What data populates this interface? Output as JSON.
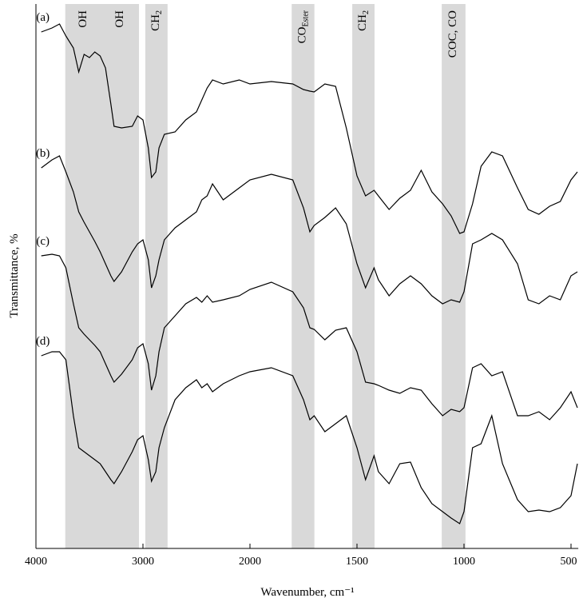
{
  "chart_data": {
    "type": "line",
    "xlabel": "Wavenumber, cm⁻¹",
    "ylabel": "Transmittance, %",
    "xlim": [
      4000,
      466
    ],
    "xticks": [
      4000,
      3000,
      2000,
      1500,
      1000,
      500
    ],
    "ylim": [
      0,
      68.1
    ],
    "color": "#000000",
    "band_color": "#d9d9d9",
    "bands": [
      {
        "from": 3726,
        "to": 3037,
        "labels": [
          {
            "text": "OH"
          },
          {
            "text": "OH"
          }
        ]
      },
      {
        "from": 2978,
        "to": 2770,
        "labels": [
          {
            "text": "CH",
            "sub": "2"
          }
        ]
      },
      {
        "from": 1805,
        "to": 1699,
        "labels": [
          {
            "text": "CO",
            "sub": "Ester"
          }
        ]
      },
      {
        "from": 1522,
        "to": 1418,
        "labels": [
          {
            "text": "CH",
            "sub": "2"
          }
        ]
      },
      {
        "from": 1104,
        "to": 993,
        "labels": [
          {
            "text": "COC, CO"
          }
        ]
      }
    ],
    "x": [
      3950,
      3850,
      3780,
      3720,
      3650,
      3600,
      3550,
      3500,
      3450,
      3400,
      3350,
      3300,
      3270,
      3200,
      3100,
      3050,
      3000,
      2950,
      2920,
      2880,
      2850,
      2800,
      2700,
      2600,
      2500,
      2450,
      2400,
      2350,
      2250,
      2100,
      2000,
      1900,
      1800,
      1750,
      1720,
      1700,
      1650,
      1600,
      1550,
      1500,
      1460,
      1420,
      1400,
      1350,
      1300,
      1250,
      1200,
      1150,
      1100,
      1060,
      1020,
      1000,
      960,
      920,
      870,
      820,
      750,
      700,
      650,
      600,
      550,
      500,
      470
    ],
    "series": [
      {
        "name": "(a)",
        "values": [
          64.6,
          65.1,
          65.6,
          64.1,
          62.6,
          59.6,
          61.8,
          61.4,
          62.1,
          61.6,
          60.1,
          55.6,
          52.8,
          52.6,
          52.8,
          54.1,
          53.6,
          50.1,
          46.4,
          47.1,
          50.1,
          51.8,
          52.1,
          53.6,
          54.6,
          56.1,
          57.6,
          58.6,
          58.1,
          58.6,
          58.1,
          58.4,
          58.1,
          57.4,
          57.2,
          57.1,
          58.1,
          57.8,
          52.6,
          46.6,
          44.1,
          44.8,
          44.1,
          42.4,
          43.8,
          44.8,
          47.3,
          44.6,
          43.1,
          41.6,
          39.4,
          39.6,
          43.1,
          47.8,
          49.6,
          49.1,
          45.1,
          42.4,
          41.8,
          42.8,
          43.4,
          46.1,
          47.1
        ]
      },
      {
        "name": "(b)",
        "values": [
          47.6,
          48.6,
          49.1,
          47.1,
          44.6,
          42.1,
          40.8,
          39.6,
          38.4,
          37.1,
          35.6,
          34.1,
          33.4,
          34.6,
          37.1,
          38.1,
          38.6,
          36.1,
          32.6,
          34.1,
          36.1,
          38.6,
          40.1,
          41.1,
          42.1,
          43.6,
          44.1,
          45.6,
          43.6,
          45.1,
          46.1,
          46.8,
          46.1,
          42.6,
          39.6,
          40.4,
          41.4,
          42.6,
          40.6,
          35.6,
          32.6,
          35.1,
          33.6,
          31.6,
          33.1,
          34.1,
          33.1,
          31.6,
          30.6,
          31.1,
          30.8,
          32.1,
          38.1,
          38.6,
          39.4,
          38.6,
          35.6,
          31.1,
          30.6,
          31.6,
          31.1,
          34.1,
          34.6
        ]
      },
      {
        "name": "(c)",
        "values": [
          36.6,
          36.8,
          36.6,
          35.1,
          30.6,
          27.6,
          26.8,
          26.1,
          25.4,
          24.6,
          23.1,
          21.6,
          20.8,
          21.8,
          23.6,
          25.1,
          25.6,
          23.1,
          19.8,
          21.6,
          24.6,
          27.6,
          29.1,
          30.6,
          31.4,
          30.8,
          31.6,
          30.8,
          31.1,
          31.6,
          32.4,
          33.3,
          32.1,
          30.1,
          27.6,
          27.4,
          26.1,
          27.3,
          27.6,
          24.6,
          20.8,
          20.6,
          20.4,
          19.8,
          19.4,
          20.1,
          19.8,
          18.1,
          16.6,
          17.4,
          17.1,
          17.6,
          22.6,
          23.1,
          21.6,
          22.1,
          16.6,
          16.6,
          17.1,
          16.1,
          17.6,
          19.6,
          17.6
        ]
      },
      {
        "name": "(d)",
        "values": [
          24.1,
          24.6,
          24.6,
          23.6,
          16.6,
          12.6,
          12.1,
          11.6,
          11.1,
          10.6,
          9.6,
          8.6,
          8.1,
          9.6,
          12.1,
          13.6,
          14.1,
          11.1,
          8.4,
          9.6,
          12.6,
          15.1,
          18.6,
          20.1,
          21.1,
          20.1,
          20.6,
          19.6,
          20.6,
          21.6,
          22.1,
          22.6,
          21.6,
          18.6,
          16.1,
          16.6,
          14.6,
          15.6,
          16.6,
          12.6,
          8.6,
          11.6,
          9.6,
          8.1,
          10.6,
          10.8,
          7.6,
          5.6,
          4.6,
          3.8,
          3.1,
          4.6,
          12.6,
          13.1,
          16.6,
          10.6,
          6.1,
          4.6,
          4.8,
          4.6,
          5.1,
          6.6,
          10.6
        ]
      }
    ]
  }
}
